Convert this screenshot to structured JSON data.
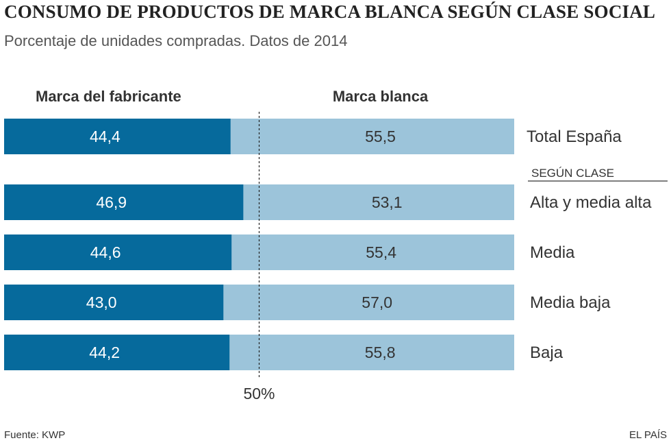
{
  "title": "CONSUMO DE PRODUCTOS DE MARCA BLANCA SEGÚN CLASE SOCIAL",
  "subtitle": "Porcentaje de unidades compradas. Datos de 2014",
  "source": "Fuente: KWP",
  "brand": "EL PAÍS",
  "colors": {
    "series_fabricante": "#066a9c",
    "series_blanca": "#9cc4da",
    "label_on_dark": "#ffffff",
    "label_on_light": "#333333"
  },
  "chart_data": {
    "type": "bar",
    "orientation": "horizontal",
    "stacked": true,
    "categories": [
      "Total España",
      "Alta y media alta",
      "Media",
      "Media baja",
      "Baja"
    ],
    "group_label": "SEGÚN CLASE",
    "series": [
      {
        "name": "Marca del fabricante",
        "values": [
          44.4,
          46.9,
          44.6,
          43.0,
          44.2
        ],
        "labels": [
          "44,4",
          "46,9",
          "44,6",
          "43,0",
          "44,2"
        ]
      },
      {
        "name": "Marca blanca",
        "values": [
          55.5,
          53.1,
          55.4,
          57.0,
          55.8
        ],
        "labels": [
          "55,5",
          "53,1",
          "55,4",
          "57,0",
          "55,8"
        ]
      }
    ],
    "xlim": [
      0,
      100
    ],
    "reference_line": {
      "value": 50,
      "label": "50%"
    },
    "grid": false,
    "legend": "top"
  }
}
